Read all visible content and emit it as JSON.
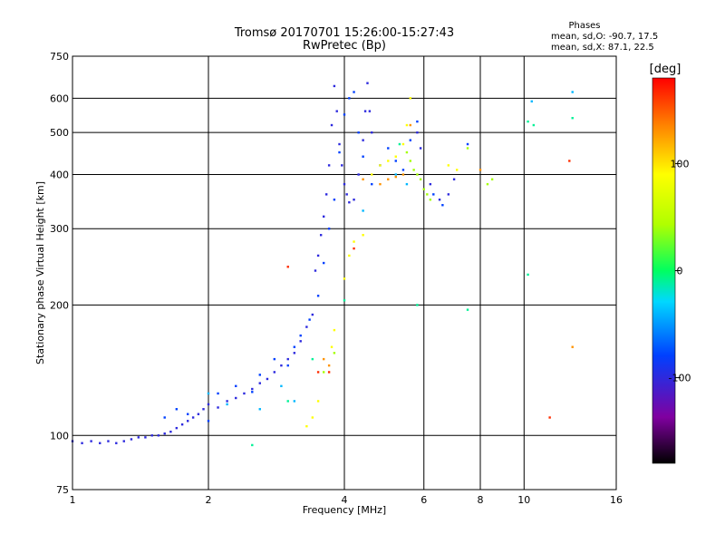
{
  "chart_data": {
    "type": "scatter",
    "title": "Tromsø 20170701 15:26:00-15:27:43",
    "subtitle": "RwPretec (Bp)",
    "xlabel": "Frequency [MHz]",
    "ylabel": "Stationary phase Virtual Height [km]",
    "x_scale": "log",
    "y_scale": "log",
    "xlim": [
      1,
      16
    ],
    "ylim": [
      75,
      750
    ],
    "x_ticks": [
      1,
      2,
      4,
      6,
      8,
      10,
      16
    ],
    "x_tick_labels": [
      "1",
      "2",
      "4",
      "6",
      "8",
      "10",
      "16"
    ],
    "y_ticks": [
      75,
      100,
      200,
      300,
      400,
      500,
      600,
      750
    ],
    "y_tick_labels": [
      "75",
      "100",
      "200",
      "300",
      "400",
      "500",
      "600",
      "750"
    ],
    "grid": true,
    "stats": {
      "heading": "Phases",
      "line_o": "mean, sd,O: -90.7, 17.5",
      "line_x": "mean, sd,X:  87.1, 22.5"
    },
    "colorbar": {
      "label": "[deg]",
      "range": [
        -180,
        180
      ],
      "ticks": [
        100,
        0,
        -100
      ],
      "tick_labels": [
        "100",
        "0",
        "-100"
      ]
    },
    "series": [
      {
        "phase": -100,
        "points": [
          [
            1.0,
            97
          ],
          [
            1.05,
            96
          ],
          [
            1.1,
            97
          ],
          [
            1.15,
            96
          ],
          [
            1.2,
            97
          ],
          [
            1.25,
            96
          ],
          [
            1.3,
            97
          ],
          [
            1.35,
            98
          ],
          [
            1.4,
            99
          ],
          [
            1.45,
            99
          ],
          [
            1.5,
            100
          ],
          [
            1.55,
            100
          ],
          [
            1.6,
            101
          ],
          [
            1.65,
            102
          ],
          [
            1.7,
            104
          ],
          [
            1.75,
            106
          ],
          [
            1.8,
            108
          ],
          [
            1.85,
            110
          ],
          [
            1.9,
            112
          ],
          [
            1.95,
            115
          ],
          [
            2.0,
            118
          ],
          [
            2.1,
            116
          ],
          [
            2.2,
            120
          ],
          [
            2.3,
            122
          ],
          [
            2.4,
            125
          ],
          [
            2.5,
            128
          ],
          [
            2.6,
            132
          ],
          [
            2.7,
            135
          ],
          [
            2.8,
            140
          ],
          [
            2.9,
            145
          ],
          [
            3.0,
            150
          ],
          [
            3.1,
            155
          ],
          [
            3.2,
            165
          ],
          [
            3.3,
            178
          ],
          [
            3.4,
            190
          ],
          [
            3.45,
            240
          ],
          [
            3.5,
            260
          ],
          [
            3.55,
            290
          ],
          [
            3.6,
            320
          ],
          [
            3.65,
            360
          ],
          [
            3.7,
            420
          ],
          [
            3.75,
            520
          ],
          [
            3.8,
            640
          ],
          [
            3.85,
            560
          ],
          [
            3.9,
            470
          ],
          [
            3.95,
            420
          ],
          [
            4.0,
            380
          ],
          [
            4.05,
            360
          ],
          [
            4.1,
            345
          ],
          [
            4.2,
            350
          ],
          [
            4.3,
            400
          ],
          [
            4.4,
            480
          ],
          [
            4.45,
            560
          ],
          [
            4.5,
            650
          ],
          [
            4.55,
            560
          ],
          [
            4.6,
            500
          ],
          [
            5.8,
            500
          ],
          [
            5.9,
            460
          ],
          [
            6.2,
            380
          ],
          [
            6.5,
            350
          ],
          [
            6.8,
            360
          ],
          [
            7.0,
            390
          ]
        ]
      },
      {
        "phase": -80,
        "points": [
          [
            1.6,
            110
          ],
          [
            1.7,
            115
          ],
          [
            1.8,
            112
          ],
          [
            2.0,
            108
          ],
          [
            2.1,
            125
          ],
          [
            2.3,
            130
          ],
          [
            2.5,
            126
          ],
          [
            2.6,
            138
          ],
          [
            2.8,
            150
          ],
          [
            3.0,
            145
          ],
          [
            3.1,
            160
          ],
          [
            3.2,
            170
          ],
          [
            3.35,
            185
          ],
          [
            3.5,
            210
          ],
          [
            3.6,
            250
          ],
          [
            3.7,
            300
          ],
          [
            3.8,
            350
          ],
          [
            3.9,
            450
          ],
          [
            4.0,
            550
          ],
          [
            4.1,
            600
          ],
          [
            4.2,
            620
          ],
          [
            4.3,
            500
          ],
          [
            4.4,
            440
          ],
          [
            4.6,
            380
          ],
          [
            4.8,
            420
          ],
          [
            5.0,
            460
          ],
          [
            5.2,
            430
          ],
          [
            5.4,
            410
          ],
          [
            5.6,
            480
          ],
          [
            5.8,
            530
          ],
          [
            6.3,
            360
          ],
          [
            6.6,
            340
          ],
          [
            7.5,
            470
          ]
        ]
      },
      {
        "phase": -40,
        "points": [
          [
            2.0,
            125
          ],
          [
            2.2,
            118
          ],
          [
            2.6,
            115
          ],
          [
            2.9,
            130
          ],
          [
            3.1,
            120
          ],
          [
            4.4,
            330
          ],
          [
            5.2,
            400
          ],
          [
            5.5,
            380
          ],
          [
            10.4,
            590
          ],
          [
            12.8,
            620
          ]
        ]
      },
      {
        "phase": -10,
        "points": [
          [
            2.5,
            95
          ],
          [
            3.0,
            120
          ],
          [
            3.4,
            150
          ],
          [
            4.0,
            205
          ],
          [
            5.3,
            470
          ],
          [
            5.8,
            200
          ],
          [
            7.5,
            195
          ],
          [
            10.2,
            530
          ],
          [
            10.5,
            520
          ],
          [
            10.2,
            235
          ],
          [
            12.8,
            540
          ]
        ]
      },
      {
        "phase": 40,
        "points": [
          [
            3.6,
            140
          ],
          [
            3.8,
            155
          ],
          [
            5.5,
            450
          ],
          [
            5.6,
            430
          ],
          [
            5.7,
            410
          ],
          [
            5.8,
            400
          ],
          [
            5.9,
            390
          ],
          [
            6.0,
            370
          ],
          [
            6.1,
            360
          ],
          [
            6.2,
            350
          ],
          [
            7.5,
            460
          ],
          [
            8.3,
            380
          ],
          [
            8.5,
            390
          ]
        ]
      },
      {
        "phase": 90,
        "points": [
          [
            3.3,
            105
          ],
          [
            3.4,
            110
          ],
          [
            3.5,
            120
          ],
          [
            3.75,
            160
          ],
          [
            3.8,
            175
          ],
          [
            4.0,
            230
          ],
          [
            4.1,
            260
          ],
          [
            4.2,
            280
          ],
          [
            4.4,
            290
          ],
          [
            4.6,
            400
          ],
          [
            4.8,
            420
          ],
          [
            5.0,
            430
          ],
          [
            5.2,
            440
          ],
          [
            5.4,
            470
          ],
          [
            5.5,
            520
          ],
          [
            5.6,
            600
          ],
          [
            6.8,
            420
          ],
          [
            7.1,
            410
          ]
        ]
      },
      {
        "phase": 130,
        "points": [
          [
            3.6,
            150
          ],
          [
            3.7,
            145
          ],
          [
            4.4,
            390
          ],
          [
            4.8,
            380
          ],
          [
            5.0,
            390
          ],
          [
            5.2,
            395
          ],
          [
            5.4,
            400
          ],
          [
            5.6,
            520
          ],
          [
            8.0,
            410
          ],
          [
            12.8,
            160
          ]
        ]
      },
      {
        "phase": 165,
        "points": [
          [
            3.0,
            245
          ],
          [
            3.5,
            140
          ],
          [
            3.7,
            140
          ],
          [
            4.2,
            270
          ],
          [
            11.4,
            110
          ],
          [
            12.6,
            430
          ]
        ]
      }
    ]
  }
}
